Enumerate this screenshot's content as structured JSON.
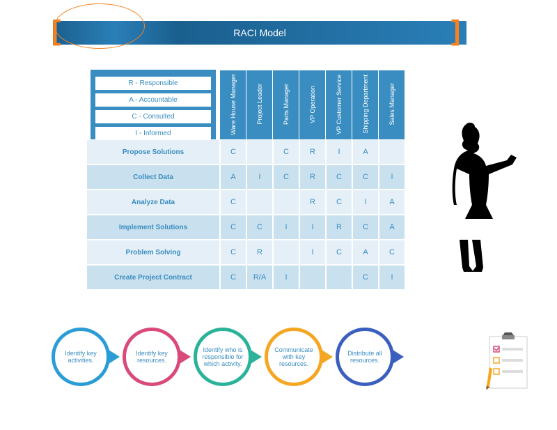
{
  "title": "RACI Model",
  "legend": {
    "items": [
      "R - Responsible",
      "A - Accountable",
      "C - Consulted",
      "I - Informed"
    ],
    "bg_color": "#3a8dc0",
    "item_bg": "#ffffff",
    "item_color": "#3a8dc0"
  },
  "columns": [
    "Ware House Manager",
    "Project Leader",
    "Parts Manager",
    "VP Operation",
    "VP Customer Service",
    "Shipping Department",
    "Sales Manager"
  ],
  "rows": [
    {
      "label": "Propose Solutions",
      "cells": [
        "C",
        "",
        "C",
        "R",
        "I",
        "A",
        ""
      ]
    },
    {
      "label": "Collect Data",
      "cells": [
        "A",
        "I",
        "C",
        "R",
        "C",
        "C",
        "I"
      ]
    },
    {
      "label": "Analyze Data",
      "cells": [
        "C",
        "",
        "",
        "R",
        "C",
        "I",
        "A"
      ]
    },
    {
      "label": "Implement Solutions",
      "cells": [
        "C",
        "C",
        "I",
        "I",
        "R",
        "C",
        "A"
      ]
    },
    {
      "label": "Problem Solving",
      "cells": [
        "C",
        "R",
        "",
        "I",
        "C",
        "A",
        "C"
      ]
    },
    {
      "label": "Create Project Contract",
      "cells": [
        "C",
        "R/A",
        "I",
        "",
        "",
        "C",
        "I"
      ]
    }
  ],
  "table_colors": {
    "header_bg": "#3a8dc0",
    "header_text": "#ffffff",
    "row_even_bg": "#e4eff7",
    "row_odd_bg": "#c9e0ee",
    "cell_text": "#3a8dc0",
    "border": "#ffffff"
  },
  "process": {
    "steps": [
      {
        "label": "Identify key activities.",
        "color": "#2a9dd6"
      },
      {
        "label": "Identify key resources.",
        "color": "#d94a7a"
      },
      {
        "label": "Identify who is responsible for which activity.",
        "color": "#2bb39a"
      },
      {
        "label": "Communicate with key resources.",
        "color": "#f5a623"
      },
      {
        "label": "Distribute all resources.",
        "color": "#3a5fbf"
      }
    ],
    "text_color": "#3a8dc0",
    "circle_border_width": 5
  },
  "accent_colors": {
    "bracket": "#f58220",
    "ellipse": "#f58220",
    "title_bar_bg": "#2a7fb8"
  }
}
